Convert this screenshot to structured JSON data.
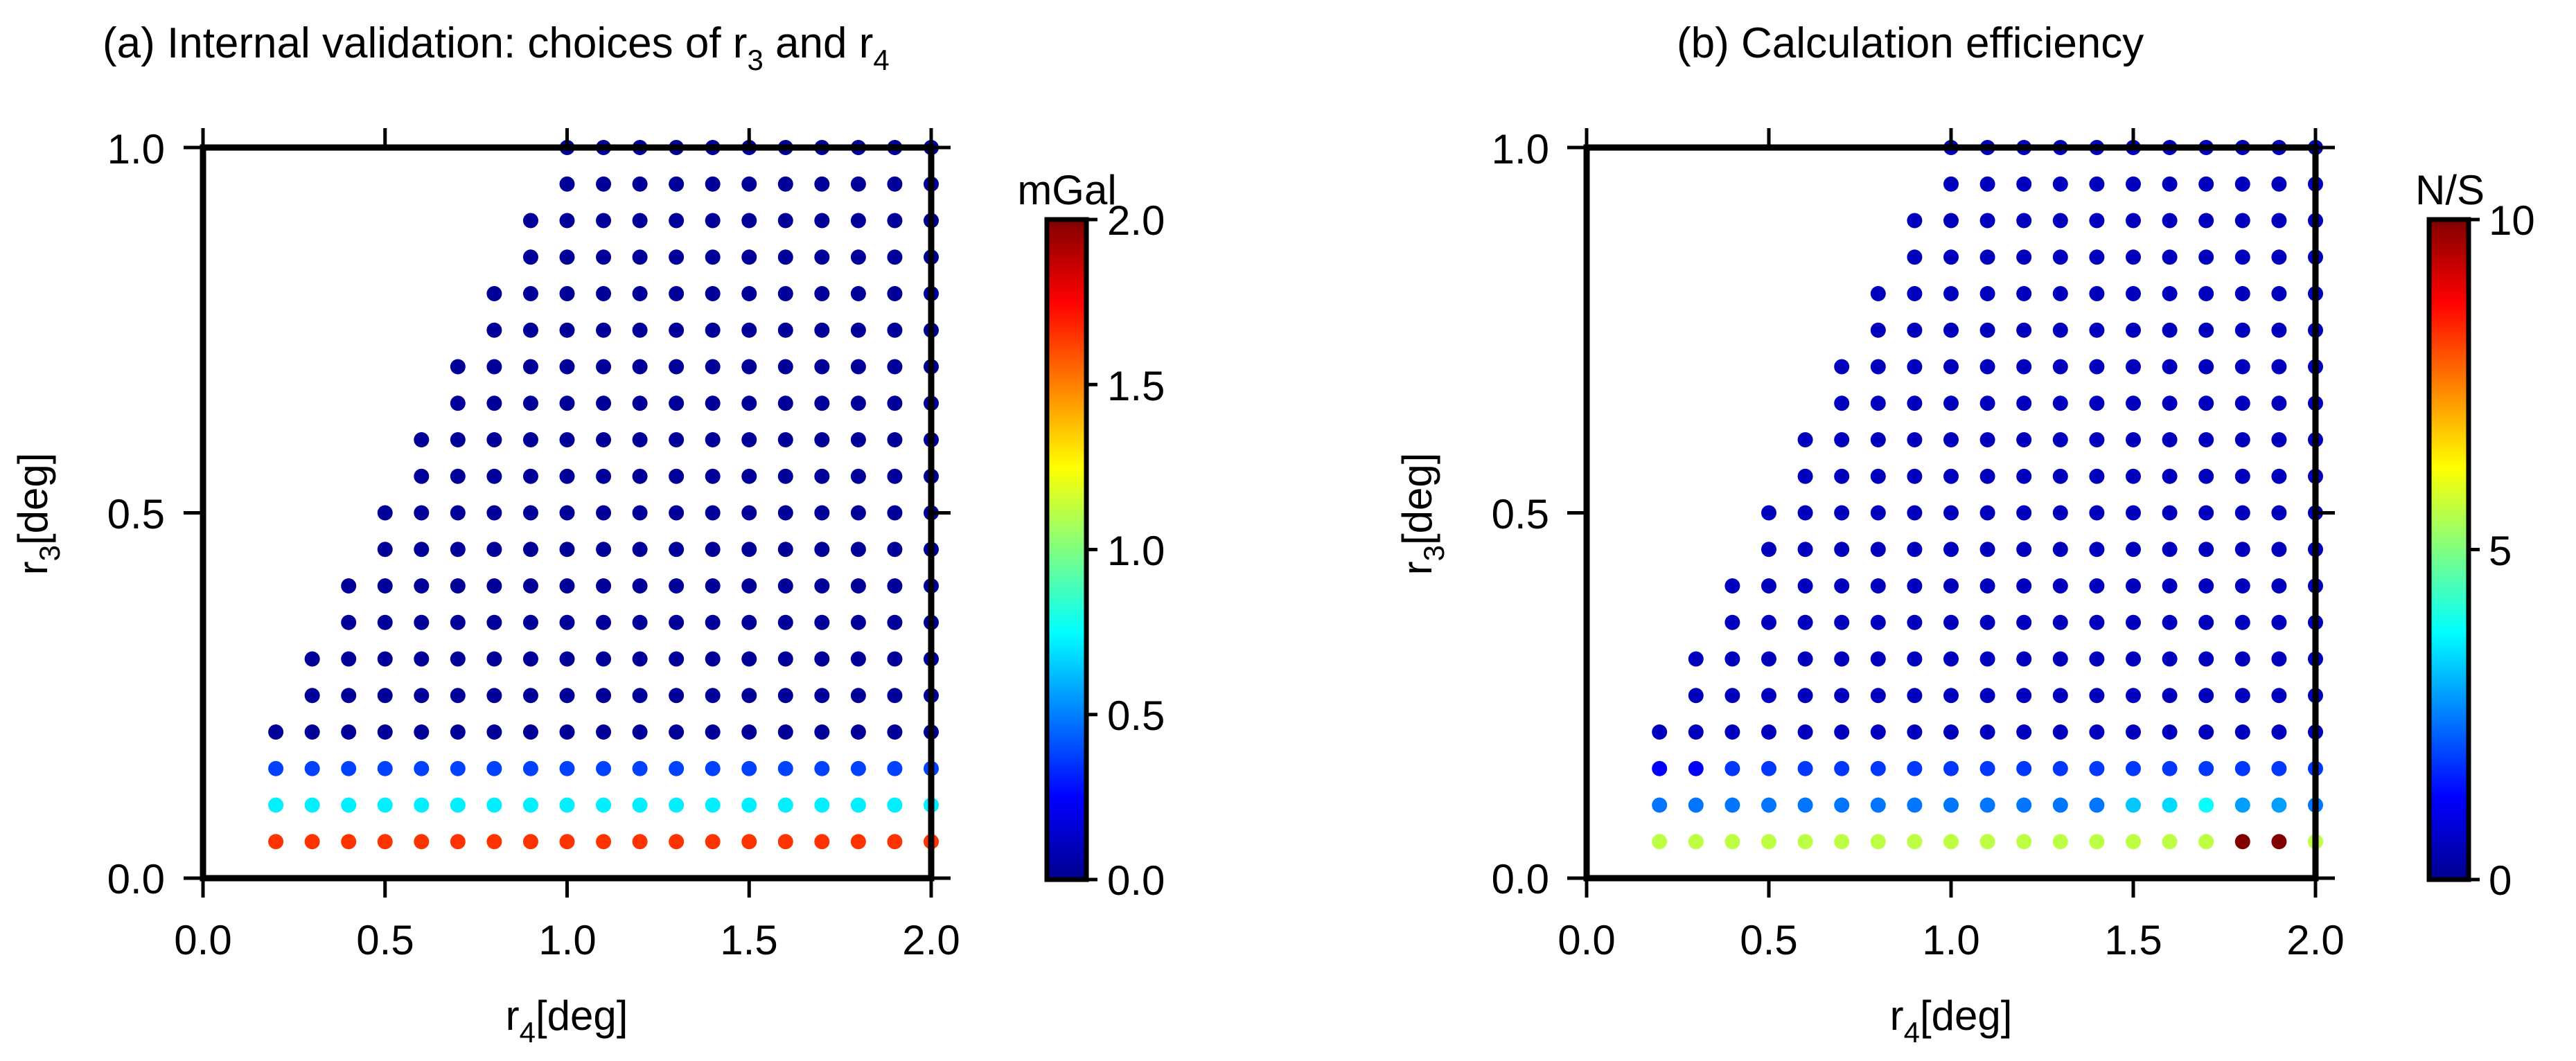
{
  "chart_data": [
    {
      "type": "scatter",
      "title_main": "(a) Internal validation: choices of r",
      "title_sub1": "3",
      "title_mid": " and r",
      "title_sub2": "4",
      "xlabel_main": "r",
      "xlabel_sub": "4",
      "xlabel_unit": "[deg]",
      "ylabel_main": "r",
      "ylabel_sub": "3",
      "ylabel_unit": "[deg]",
      "xlim": [
        0,
        2
      ],
      "ylim": [
        0,
        1
      ],
      "xticks": [
        "0.0",
        "0.5",
        "1.0",
        "1.5",
        "2.0"
      ],
      "yticks": [
        "0.0",
        "0.5",
        "1.0"
      ],
      "colorbar": {
        "label": "mGal",
        "range": [
          0,
          2
        ],
        "ticks": [
          "0.0",
          "0.5",
          "1.0",
          "1.5",
          "2.0"
        ]
      },
      "colormap": "jet",
      "grid_rule": "points exist for r3 in 0.05..1.00 (step 0.05) and r4 in 0.1..2.0 (step 0.1) with r4 >= max(0.2, r3)",
      "row_values": [
        {
          "r3": 0.05,
          "value": 1.65
        },
        {
          "r3": 0.1,
          "value": 0.72
        },
        {
          "r3": 0.15,
          "value": 0.38
        },
        {
          "r3": 0.2,
          "value": 0.05,
          "default": true
        }
      ],
      "default_value": 0.05,
      "overrides": []
    },
    {
      "type": "scatter",
      "title_main": "(b) Calculation efficiency",
      "xlabel_main": "r",
      "xlabel_sub": "4",
      "xlabel_unit": "[deg]",
      "ylabel_main": "r",
      "ylabel_sub": "3",
      "ylabel_unit": "[deg]",
      "xlim": [
        0,
        2
      ],
      "ylim": [
        0,
        1
      ],
      "xticks": [
        "0.0",
        "0.5",
        "1.0",
        "1.5",
        "2.0"
      ],
      "yticks": [
        "0.0",
        "0.5",
        "1.0"
      ],
      "colorbar": {
        "label": "N/S",
        "range": [
          0,
          10
        ],
        "ticks": [
          "0",
          "5",
          "10"
        ]
      },
      "colormap": "jet",
      "grid_rule": "points exist for r3 in 0.05..1.00 (step 0.05) and r4 in 0.1..2.0 (step 0.1) with r4 >= max(0.2, r3)",
      "row_values": [
        {
          "r3": 0.05,
          "value": 5.6
        },
        {
          "r3": 0.1,
          "value": 2.4
        },
        {
          "r3": 0.15,
          "value": 1.8
        },
        {
          "r3": 0.2,
          "value": 0.6,
          "default": true
        }
      ],
      "default_value": 0.6,
      "overrides": [
        {
          "r3": 0.1,
          "r4": 1.5,
          "value": 3.2
        },
        {
          "r3": 0.1,
          "r4": 1.6,
          "value": 3.4
        },
        {
          "r3": 0.1,
          "r4": 1.7,
          "value": 3.8
        },
        {
          "r3": 0.1,
          "r4": 1.8,
          "value": 2.8
        },
        {
          "r3": 0.1,
          "r4": 1.9,
          "value": 2.8
        },
        {
          "r3": 0.15,
          "r4": 0.2,
          "value": 1.2
        },
        {
          "r3": 0.15,
          "r4": 0.3,
          "value": 1.2
        },
        {
          "r3": 0.05,
          "r4": 1.8,
          "value": 10.0
        },
        {
          "r3": 0.05,
          "r4": 1.9,
          "value": 10.0
        }
      ]
    }
  ]
}
